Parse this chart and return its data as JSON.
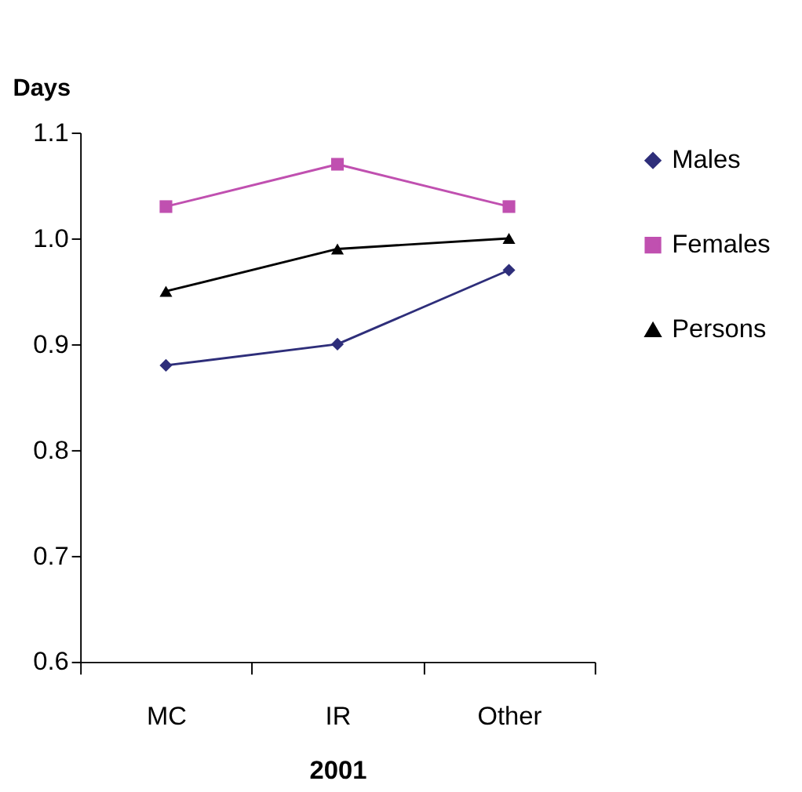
{
  "chart_data": {
    "type": "line",
    "ylabel": "Days",
    "xlabel": "2001",
    "categories": [
      "MC",
      "IR",
      "Other"
    ],
    "series": [
      {
        "name": "Males",
        "color": "#2e2e7a",
        "marker": "diamond",
        "values": [
          0.88,
          0.9,
          0.97
        ]
      },
      {
        "name": "Females",
        "color": "#c050b0",
        "marker": "square",
        "values": [
          1.03,
          1.07,
          1.03
        ]
      },
      {
        "name": "Persons",
        "color": "#000000",
        "marker": "triangle",
        "values": [
          0.95,
          0.99,
          1.0
        ]
      }
    ],
    "ylim": [
      0.6,
      1.1
    ],
    "yticks": [
      {
        "value": 0.6,
        "label": "0.6"
      },
      {
        "value": 0.7,
        "label": "0.7"
      },
      {
        "value": 0.8,
        "label": "0.8"
      },
      {
        "value": 0.9,
        "label": "0.9"
      },
      {
        "value": 1.0,
        "label": "1.0"
      },
      {
        "value": 1.1,
        "label": "1.1"
      }
    ],
    "grid": false,
    "legend": "right",
    "line_style": "solid"
  }
}
